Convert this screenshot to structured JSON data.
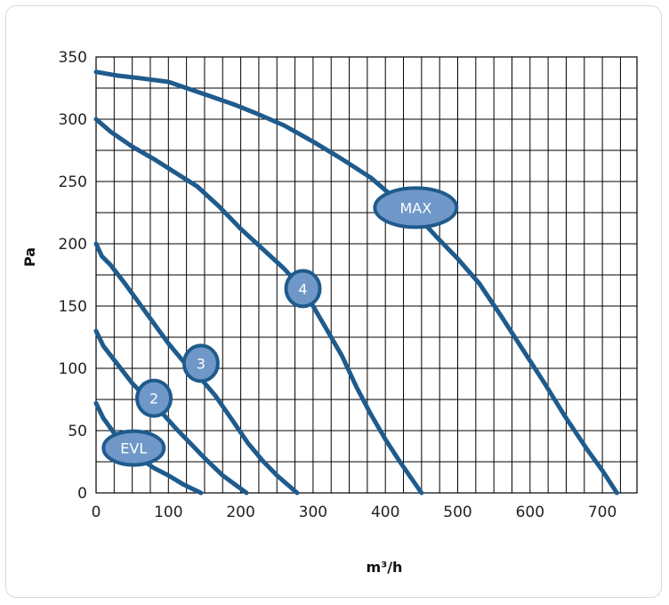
{
  "chart_data": {
    "type": "line",
    "xlabel": "m³/h",
    "ylabel": "Pa",
    "xlim": [
      0,
      720
    ],
    "ylim": [
      0,
      350
    ],
    "x_ticks": [
      0,
      100,
      200,
      300,
      400,
      500,
      600,
      700
    ],
    "y_ticks": [
      0,
      50,
      100,
      150,
      200,
      250,
      300,
      350
    ],
    "grid": true,
    "colors": {
      "curve": "#1f5b8c",
      "badge_fill": "#6f98c8",
      "badge_stroke": "#1f5b8c",
      "grid": "#000000"
    },
    "series": [
      {
        "name": "EVL",
        "label_at": [
          52,
          36
        ],
        "points": [
          [
            0,
            72
          ],
          [
            10,
            60
          ],
          [
            25,
            48
          ],
          [
            40,
            38
          ],
          [
            60,
            28
          ],
          [
            80,
            20
          ],
          [
            100,
            14
          ],
          [
            120,
            7
          ],
          [
            145,
            0
          ]
        ]
      },
      {
        "name": "2",
        "label_at": [
          80,
          76
        ],
        "points": [
          [
            0,
            130
          ],
          [
            10,
            118
          ],
          [
            30,
            103
          ],
          [
            50,
            88
          ],
          [
            70,
            76
          ],
          [
            90,
            65
          ],
          [
            110,
            52
          ],
          [
            130,
            40
          ],
          [
            150,
            28
          ],
          [
            175,
            14
          ],
          [
            208,
            0
          ]
        ]
      },
      {
        "name": "3",
        "label_at": [
          145,
          104
        ],
        "points": [
          [
            0,
            200
          ],
          [
            8,
            190
          ],
          [
            20,
            183
          ],
          [
            40,
            168
          ],
          [
            60,
            152
          ],
          [
            80,
            136
          ],
          [
            100,
            120
          ],
          [
            120,
            106
          ],
          [
            140,
            95
          ],
          [
            165,
            78
          ],
          [
            190,
            57
          ],
          [
            210,
            40
          ],
          [
            230,
            26
          ],
          [
            250,
            14
          ],
          [
            278,
            0
          ]
        ]
      },
      {
        "name": "4",
        "label_at": [
          286,
          164
        ],
        "points": [
          [
            0,
            300
          ],
          [
            20,
            290
          ],
          [
            50,
            278
          ],
          [
            80,
            268
          ],
          [
            110,
            257
          ],
          [
            140,
            246
          ],
          [
            170,
            230
          ],
          [
            200,
            212
          ],
          [
            230,
            196
          ],
          [
            260,
            180
          ],
          [
            285,
            164
          ],
          [
            300,
            150
          ],
          [
            320,
            130
          ],
          [
            340,
            110
          ],
          [
            360,
            85
          ],
          [
            380,
            63
          ],
          [
            400,
            43
          ],
          [
            420,
            25
          ],
          [
            450,
            0
          ]
        ]
      },
      {
        "name": "MAX",
        "label_at": [
          442,
          229
        ],
        "points": [
          [
            0,
            338
          ],
          [
            30,
            335
          ],
          [
            60,
            333
          ],
          [
            100,
            330
          ],
          [
            130,
            324
          ],
          [
            160,
            318
          ],
          [
            190,
            312
          ],
          [
            220,
            305
          ],
          [
            260,
            295
          ],
          [
            300,
            282
          ],
          [
            340,
            268
          ],
          [
            380,
            253
          ],
          [
            410,
            238
          ],
          [
            440,
            225
          ],
          [
            470,
            206
          ],
          [
            500,
            188
          ],
          [
            530,
            168
          ],
          [
            560,
            142
          ],
          [
            590,
            115
          ],
          [
            620,
            88
          ],
          [
            650,
            60
          ],
          [
            680,
            34
          ],
          [
            700,
            18
          ],
          [
            720,
            0
          ]
        ]
      }
    ]
  }
}
